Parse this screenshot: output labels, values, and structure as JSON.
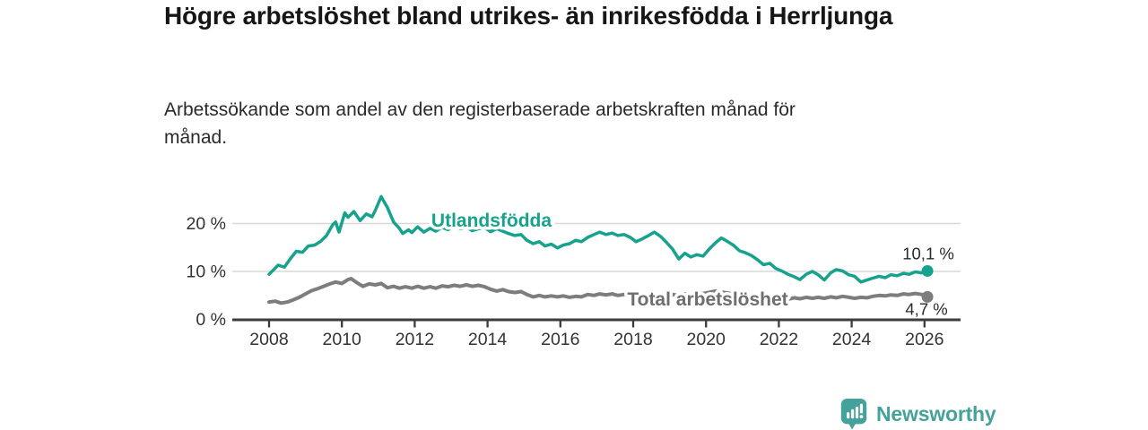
{
  "branding": {
    "logo_text": "Newsworthy",
    "logo_icon": "bar-chart-speech-bubble-icon",
    "brand_color": "#45a29a"
  },
  "chart_data": {
    "type": "line",
    "title": "Högre arbetslöshet bland utrikes- än inrikesfödda i Herrljunga",
    "subtitle": "Arbetssökande som andel av den registerbaserade arbetskraften månad för månad.",
    "grid": "horizontal",
    "legend": "inline-series-labels",
    "x_axis": {
      "ticks": [
        2008,
        2010,
        2012,
        2014,
        2016,
        2018,
        2020,
        2022,
        2024,
        2026
      ],
      "range": [
        2007.9,
        2026.9
      ]
    },
    "y_axis": {
      "tick_labels": [
        "0 %",
        "10 %",
        "20 %"
      ],
      "tick_values": [
        0,
        10,
        20
      ],
      "range": [
        0,
        27.5
      ]
    },
    "series": [
      {
        "name": "Utlandsfödda",
        "color": "#16a28c",
        "end_label": "10,1 %",
        "end_value": 10.1,
        "points": [
          [
            2008,
            9.4
          ],
          [
            2008.08,
            10
          ],
          [
            2008.17,
            10.7
          ],
          [
            2008.25,
            11.3
          ],
          [
            2008.42,
            10.9
          ],
          [
            2008.58,
            12.6
          ],
          [
            2008.75,
            14.2
          ],
          [
            2008.92,
            14
          ],
          [
            2009.08,
            15.3
          ],
          [
            2009.25,
            15.5
          ],
          [
            2009.42,
            16.3
          ],
          [
            2009.58,
            17.5
          ],
          [
            2009.75,
            19.8
          ],
          [
            2009.83,
            20.3
          ],
          [
            2009.92,
            18.2
          ],
          [
            2010.08,
            22.2
          ],
          [
            2010.17,
            21.3
          ],
          [
            2010.33,
            22.5
          ],
          [
            2010.5,
            20.6
          ],
          [
            2010.67,
            22
          ],
          [
            2010.83,
            21.4
          ],
          [
            2010.92,
            22.8
          ],
          [
            2011.08,
            25.6
          ],
          [
            2011.25,
            23.3
          ],
          [
            2011.42,
            20.3
          ],
          [
            2011.58,
            19
          ],
          [
            2011.67,
            17.9
          ],
          [
            2011.83,
            18.7
          ],
          [
            2011.92,
            18.1
          ],
          [
            2012.08,
            19.3
          ],
          [
            2012.25,
            18.2
          ],
          [
            2012.42,
            19
          ],
          [
            2012.58,
            18.4
          ],
          [
            2012.75,
            19.2
          ],
          [
            2012.92,
            18.7
          ],
          [
            2013.08,
            19.6
          ],
          [
            2013.25,
            18.9
          ],
          [
            2013.42,
            19.3
          ],
          [
            2013.58,
            18.5
          ],
          [
            2013.75,
            18.9
          ],
          [
            2013.92,
            19.2
          ],
          [
            2014.08,
            18.3
          ],
          [
            2014.25,
            18.9
          ],
          [
            2014.42,
            18.4
          ],
          [
            2014.58,
            17.9
          ],
          [
            2014.75,
            17.5
          ],
          [
            2014.92,
            17.7
          ],
          [
            2015.08,
            16.5
          ],
          [
            2015.25,
            15.8
          ],
          [
            2015.42,
            16.2
          ],
          [
            2015.58,
            15.3
          ],
          [
            2015.75,
            15.7
          ],
          [
            2015.92,
            14.9
          ],
          [
            2016.08,
            15.5
          ],
          [
            2016.25,
            15.8
          ],
          [
            2016.42,
            16.5
          ],
          [
            2016.58,
            16.2
          ],
          [
            2016.75,
            17.1
          ],
          [
            2016.92,
            17.7
          ],
          [
            2017.08,
            18.2
          ],
          [
            2017.25,
            17.7
          ],
          [
            2017.42,
            18
          ],
          [
            2017.58,
            17.5
          ],
          [
            2017.75,
            17.7
          ],
          [
            2017.92,
            17.1
          ],
          [
            2018.08,
            16.2
          ],
          [
            2018.25,
            16.8
          ],
          [
            2018.42,
            17.5
          ],
          [
            2018.58,
            18.2
          ],
          [
            2018.75,
            17.3
          ],
          [
            2018.92,
            16
          ],
          [
            2019.08,
            14.7
          ],
          [
            2019.25,
            12.6
          ],
          [
            2019.42,
            13.8
          ],
          [
            2019.58,
            13
          ],
          [
            2019.75,
            13.5
          ],
          [
            2019.92,
            13.2
          ],
          [
            2020.08,
            14.6
          ],
          [
            2020.25,
            15.9
          ],
          [
            2020.42,
            17
          ],
          [
            2020.58,
            16.3
          ],
          [
            2020.75,
            15.5
          ],
          [
            2020.92,
            14.3
          ],
          [
            2021.08,
            13.9
          ],
          [
            2021.25,
            13.3
          ],
          [
            2021.42,
            12.4
          ],
          [
            2021.58,
            11.4
          ],
          [
            2021.75,
            11.7
          ],
          [
            2021.92,
            10.6
          ],
          [
            2022.08,
            10.1
          ],
          [
            2022.25,
            9.4
          ],
          [
            2022.42,
            8.9
          ],
          [
            2022.58,
            8.3
          ],
          [
            2022.75,
            9.4
          ],
          [
            2022.92,
            10
          ],
          [
            2023.08,
            9.3
          ],
          [
            2023.25,
            8.2
          ],
          [
            2023.42,
            9.7
          ],
          [
            2023.58,
            10.4
          ],
          [
            2023.75,
            10.1
          ],
          [
            2023.92,
            9.3
          ],
          [
            2024.08,
            9
          ],
          [
            2024.25,
            7.8
          ],
          [
            2024.42,
            8.2
          ],
          [
            2024.58,
            8.6
          ],
          [
            2024.75,
            9
          ],
          [
            2024.92,
            8.7
          ],
          [
            2025.08,
            9.3
          ],
          [
            2025.25,
            9.1
          ],
          [
            2025.42,
            9.6
          ],
          [
            2025.58,
            9.4
          ],
          [
            2025.75,
            9.9
          ],
          [
            2025.92,
            9.7
          ],
          [
            2026.08,
            10.1
          ]
        ]
      },
      {
        "name": "Total arbetslöshet",
        "color": "#7d7d7d",
        "label_color": "#6e6e6e",
        "end_label": "4,7 %",
        "end_value": 4.7,
        "points": [
          [
            2008,
            3.6
          ],
          [
            2008.08,
            3.7
          ],
          [
            2008.17,
            3.8
          ],
          [
            2008.33,
            3.4
          ],
          [
            2008.5,
            3.6
          ],
          [
            2008.67,
            4.1
          ],
          [
            2008.83,
            4.6
          ],
          [
            2009,
            5.3
          ],
          [
            2009.17,
            6
          ],
          [
            2009.33,
            6.4
          ],
          [
            2009.5,
            6.9
          ],
          [
            2009.67,
            7.4
          ],
          [
            2009.83,
            7.8
          ],
          [
            2010,
            7.5
          ],
          [
            2010.17,
            8.3
          ],
          [
            2010.25,
            8.5
          ],
          [
            2010.42,
            7.6
          ],
          [
            2010.58,
            6.9
          ],
          [
            2010.75,
            7.4
          ],
          [
            2010.92,
            7.2
          ],
          [
            2011.08,
            7.5
          ],
          [
            2011.25,
            6.6
          ],
          [
            2011.42,
            6.9
          ],
          [
            2011.58,
            6.5
          ],
          [
            2011.75,
            6.8
          ],
          [
            2011.92,
            6.5
          ],
          [
            2012.08,
            6.9
          ],
          [
            2012.25,
            6.5
          ],
          [
            2012.42,
            6.8
          ],
          [
            2012.58,
            6.5
          ],
          [
            2012.75,
            7
          ],
          [
            2012.92,
            6.8
          ],
          [
            2013.08,
            7.1
          ],
          [
            2013.25,
            6.9
          ],
          [
            2013.42,
            7.2
          ],
          [
            2013.58,
            6.9
          ],
          [
            2013.75,
            7.1
          ],
          [
            2013.92,
            6.8
          ],
          [
            2014.08,
            6.3
          ],
          [
            2014.25,
            5.9
          ],
          [
            2014.42,
            6.2
          ],
          [
            2014.58,
            5.8
          ],
          [
            2014.75,
            5.6
          ],
          [
            2014.92,
            5.8
          ],
          [
            2015.08,
            5.2
          ],
          [
            2015.25,
            4.7
          ],
          [
            2015.42,
            5
          ],
          [
            2015.58,
            4.7
          ],
          [
            2015.75,
            4.9
          ],
          [
            2015.92,
            4.7
          ],
          [
            2016.08,
            4.9
          ],
          [
            2016.25,
            4.6
          ],
          [
            2016.42,
            4.8
          ],
          [
            2016.58,
            4.7
          ],
          [
            2016.75,
            5.2
          ],
          [
            2016.92,
            5
          ],
          [
            2017.08,
            5.3
          ],
          [
            2017.25,
            5.1
          ],
          [
            2017.42,
            5.3
          ],
          [
            2017.58,
            5
          ],
          [
            2017.75,
            5.2
          ],
          [
            2017.92,
            5
          ],
          [
            2018.08,
            4.8
          ],
          [
            2018.25,
            5
          ],
          [
            2018.42,
            4.9
          ],
          [
            2018.58,
            5.1
          ],
          [
            2018.75,
            4.9
          ],
          [
            2018.92,
            5
          ],
          [
            2019.08,
            5.2
          ],
          [
            2019.25,
            5
          ],
          [
            2019.42,
            5.3
          ],
          [
            2019.58,
            5.1
          ],
          [
            2019.75,
            5.2
          ],
          [
            2019.92,
            5.4
          ],
          [
            2020.08,
            5.6
          ],
          [
            2020.25,
            5.9
          ],
          [
            2020.42,
            5.7
          ],
          [
            2020.58,
            5.5
          ],
          [
            2020.75,
            5.3
          ],
          [
            2020.92,
            5.2
          ],
          [
            2021.08,
            5
          ],
          [
            2021.25,
            4.9
          ],
          [
            2021.42,
            4.7
          ],
          [
            2021.58,
            4.6
          ],
          [
            2021.75,
            4.5
          ],
          [
            2021.92,
            4.4
          ],
          [
            2022.08,
            4.3
          ],
          [
            2022.25,
            4.2
          ],
          [
            2022.42,
            4.5
          ],
          [
            2022.58,
            4.3
          ],
          [
            2022.75,
            4.6
          ],
          [
            2022.92,
            4.4
          ],
          [
            2023.08,
            4.6
          ],
          [
            2023.25,
            4.4
          ],
          [
            2023.42,
            4.7
          ],
          [
            2023.58,
            4.5
          ],
          [
            2023.75,
            4.8
          ],
          [
            2023.92,
            4.6
          ],
          [
            2024.08,
            4.4
          ],
          [
            2024.25,
            4.6
          ],
          [
            2024.42,
            4.5
          ],
          [
            2024.58,
            4.8
          ],
          [
            2024.75,
            5
          ],
          [
            2024.92,
            4.9
          ],
          [
            2025.08,
            5.1
          ],
          [
            2025.25,
            5
          ],
          [
            2025.42,
            5.3
          ],
          [
            2025.58,
            5.2
          ],
          [
            2025.75,
            5.4
          ],
          [
            2025.92,
            5.2
          ],
          [
            2026.08,
            4.7
          ]
        ]
      }
    ]
  }
}
